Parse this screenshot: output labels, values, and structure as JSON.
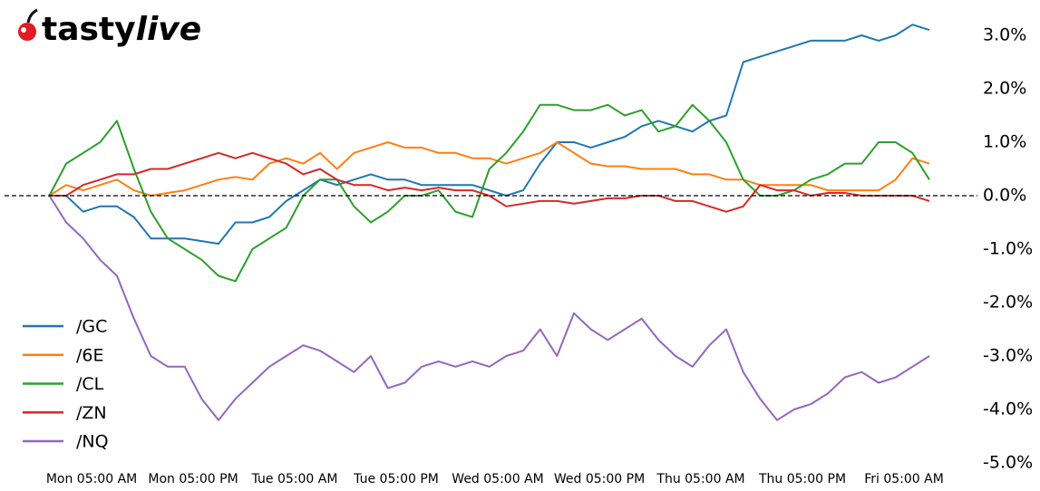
{
  "brand": [
    "tasty",
    "live"
  ],
  "chart_data": {
    "type": "line",
    "x": [
      0,
      2,
      4,
      6,
      8,
      10,
      12,
      14,
      16,
      18,
      20,
      22,
      24,
      26,
      28,
      30,
      32,
      34,
      36,
      38,
      40,
      42,
      44,
      46,
      48,
      50,
      52,
      54,
      56,
      58,
      60,
      62,
      64,
      66,
      68,
      70,
      72,
      74,
      76,
      78,
      80,
      82,
      84,
      86,
      88,
      90,
      92,
      94,
      96,
      98,
      100,
      102,
      104
    ],
    "series": [
      {
        "name": "/GC",
        "color": "#1f77b4",
        "values": [
          0,
          0,
          -0.3,
          -0.2,
          -0.2,
          -0.4,
          -0.8,
          -0.8,
          -0.8,
          -0.85,
          -0.9,
          -0.5,
          -0.5,
          -0.4,
          -0.1,
          0.1,
          0.3,
          0.2,
          0.3,
          0.4,
          0.3,
          0.3,
          0.2,
          0.2,
          0.2,
          0.2,
          0.1,
          0.0,
          0.1,
          0.6,
          1.0,
          1.0,
          0.9,
          1.0,
          1.1,
          1.3,
          1.4,
          1.3,
          1.2,
          1.4,
          1.5,
          2.5,
          2.6,
          2.7,
          2.8,
          2.9,
          2.9,
          2.9,
          3.0,
          2.9,
          3.0,
          3.2,
          3.1
        ]
      },
      {
        "name": "/6E",
        "color": "#ff7f0e",
        "values": [
          0,
          0.2,
          0.1,
          0.2,
          0.3,
          0.1,
          0.0,
          0.05,
          0.1,
          0.2,
          0.3,
          0.35,
          0.3,
          0.6,
          0.7,
          0.6,
          0.8,
          0.5,
          0.8,
          0.9,
          1.0,
          0.9,
          0.9,
          0.8,
          0.8,
          0.7,
          0.7,
          0.6,
          0.7,
          0.8,
          1.0,
          0.8,
          0.6,
          0.55,
          0.55,
          0.5,
          0.5,
          0.5,
          0.4,
          0.4,
          0.3,
          0.3,
          0.2,
          0.2,
          0.2,
          0.2,
          0.1,
          0.1,
          0.1,
          0.1,
          0.3,
          0.7,
          0.6
        ]
      },
      {
        "name": "/CL",
        "color": "#2ca02c",
        "values": [
          0,
          0.6,
          0.8,
          1.0,
          1.4,
          0.5,
          -0.3,
          -0.8,
          -1.0,
          -1.2,
          -1.5,
          -1.6,
          -1.0,
          -0.8,
          -0.6,
          0.0,
          0.3,
          0.3,
          -0.2,
          -0.5,
          -0.3,
          0.0,
          0.0,
          0.1,
          -0.3,
          -0.4,
          0.5,
          0.8,
          1.2,
          1.7,
          1.7,
          1.6,
          1.6,
          1.7,
          1.5,
          1.6,
          1.2,
          1.3,
          1.7,
          1.4,
          1.0,
          0.3,
          0.0,
          0.0,
          0.1,
          0.3,
          0.4,
          0.6,
          0.6,
          1.0,
          1.0,
          0.8,
          0.3
        ]
      },
      {
        "name": "/ZN",
        "color": "#d62728",
        "values": [
          0,
          0.0,
          0.2,
          0.3,
          0.4,
          0.4,
          0.5,
          0.5,
          0.6,
          0.7,
          0.8,
          0.7,
          0.8,
          0.7,
          0.6,
          0.4,
          0.5,
          0.3,
          0.2,
          0.2,
          0.1,
          0.15,
          0.1,
          0.15,
          0.1,
          0.1,
          0.0,
          -0.2,
          -0.15,
          -0.1,
          -0.1,
          -0.15,
          -0.1,
          -0.05,
          -0.05,
          0.0,
          0.0,
          -0.1,
          -0.1,
          -0.2,
          -0.3,
          -0.2,
          0.2,
          0.1,
          0.1,
          0.0,
          0.05,
          0.05,
          0.0,
          0.0,
          0.0,
          0.0,
          -0.1
        ]
      },
      {
        "name": "/NQ",
        "color": "#9467bd",
        "values": [
          0,
          -0.5,
          -0.8,
          -1.2,
          -1.5,
          -2.3,
          -3.0,
          -3.2,
          -3.2,
          -3.8,
          -4.2,
          -3.8,
          -3.5,
          -3.2,
          -3.0,
          -2.8,
          -2.9,
          -3.1,
          -3.3,
          -3.0,
          -3.6,
          -3.5,
          -3.2,
          -3.1,
          -3.2,
          -3.1,
          -3.2,
          -3.0,
          -2.9,
          -2.5,
          -3.0,
          -2.2,
          -2.5,
          -2.7,
          -2.5,
          -2.3,
          -2.7,
          -3.0,
          -3.2,
          -2.8,
          -2.5,
          -3.3,
          -3.8,
          -4.2,
          -4.0,
          -3.9,
          -3.7,
          -3.4,
          -3.3,
          -3.5,
          -3.4,
          -3.2,
          -3.0
        ]
      }
    ],
    "xlim": [
      -5,
      110
    ],
    "xticks": [
      {
        "value": 5,
        "label": "Mon 05:00 AM"
      },
      {
        "value": 17,
        "label": "Mon 05:00 PM"
      },
      {
        "value": 29,
        "label": "Tue 05:00 AM"
      },
      {
        "value": 41,
        "label": "Tue 05:00 PM"
      },
      {
        "value": 53,
        "label": "Wed 05:00 AM"
      },
      {
        "value": 65,
        "label": "Wed 05:00 PM"
      },
      {
        "value": 77,
        "label": "Thu 05:00 AM"
      },
      {
        "value": 89,
        "label": "Thu 05:00 PM"
      },
      {
        "value": 101,
        "label": "Fri 05:00 AM"
      }
    ],
    "ylim": [
      -5.2,
      3.5
    ],
    "yticks": [
      {
        "value": 3,
        "label": "3.0%"
      },
      {
        "value": 2,
        "label": "2.0%"
      },
      {
        "value": 1,
        "label": "1.0%"
      },
      {
        "value": 0,
        "label": "0.0%"
      },
      {
        "value": -1,
        "label": "-1.0%"
      },
      {
        "value": -2,
        "label": "-2.0%"
      },
      {
        "value": -3,
        "label": "-3.0%"
      },
      {
        "value": -4,
        "label": "-4.0%"
      },
      {
        "value": -5,
        "label": "-5.0%"
      }
    ],
    "reference_line": 0,
    "legend": "lower left"
  }
}
